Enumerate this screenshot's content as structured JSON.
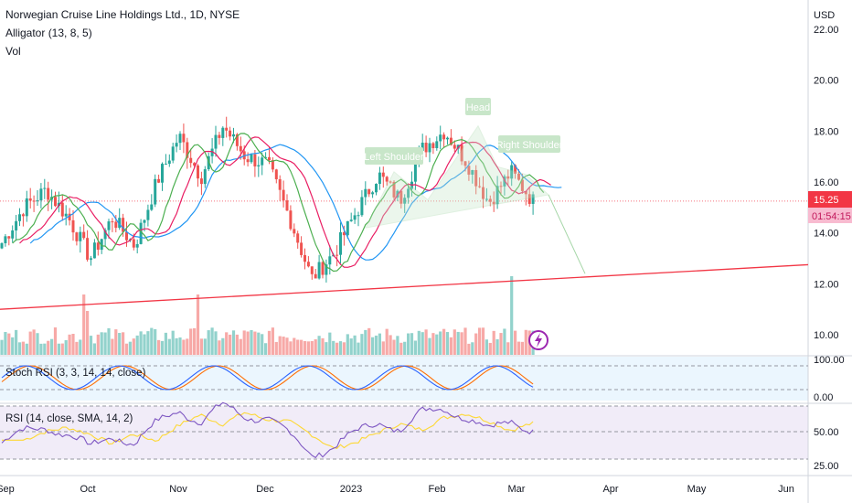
{
  "header": {
    "symbol_title": "Norwegian Cruise Line Holdings Ltd., 1D, NYSE",
    "indicator_alligator": "Alligator (13, 8, 5)",
    "indicator_vol": "Vol"
  },
  "price_axis": {
    "currency": "USD",
    "ticks": [
      "22.00",
      "20.00",
      "18.00",
      "16.00",
      "14.00",
      "12.00",
      "10.00"
    ],
    "current_price": "15.25",
    "countdown": "01:54:15"
  },
  "stoch_pane": {
    "label": "Stoch RSI (3, 3, 14, 14, close)",
    "ticks": [
      "100.00",
      "0.00"
    ]
  },
  "rsi_pane": {
    "label": "RSI (14, close, SMA, 14, 2)",
    "ticks": [
      "50.00",
      "25.00"
    ]
  },
  "time_axis": {
    "ticks": [
      "Sep",
      "Oct",
      "Nov",
      "Dec",
      "2023",
      "Feb",
      "Mar",
      "Apr",
      "May",
      "Jun"
    ]
  },
  "annotations": {
    "left_shoulder": "Left Shoulder",
    "head": "Head",
    "right_shoulder": "Right Shoulder"
  },
  "colors": {
    "up": "#26a69a",
    "down": "#ef5350",
    "jaw": "#2196f3",
    "teeth": "#e91e63",
    "lips": "#4caf50",
    "stoch_k": "#2962ff",
    "stoch_d": "#ff6d00",
    "rsi": "#7e57c2",
    "rsi_ma": "#fdd835",
    "trendline": "#f23645",
    "pattern": "#a5d6a7"
  },
  "chart_data": {
    "type": "candlestick",
    "anchors": [
      {
        "date": "Sep",
        "price": 13.6
      },
      {
        "date": "Sep",
        "price": 15.0
      },
      {
        "date": "Sep",
        "price": 15.7
      },
      {
        "date": "Sep",
        "price": 14.6
      },
      {
        "date": "Oct",
        "price": 13.0
      },
      {
        "date": "Oct",
        "price": 14.6
      },
      {
        "date": "Oct",
        "price": 13.5
      },
      {
        "date": "Oct",
        "price": 16.0
      },
      {
        "date": "Nov",
        "price": 17.8
      },
      {
        "date": "Nov",
        "price": 16.2
      },
      {
        "date": "Nov",
        "price": 18.2
      },
      {
        "date": "Nov",
        "price": 17.0
      },
      {
        "date": "Dec",
        "price": 16.7
      },
      {
        "date": "Dec",
        "price": 14.6
      },
      {
        "date": "Dec",
        "price": 12.2
      },
      {
        "date": "Dec",
        "price": 13.2
      },
      {
        "date": "2023",
        "price": 14.8
      },
      {
        "date": "2023",
        "price": 16.3
      },
      {
        "date": "2023",
        "price": 15.3
      },
      {
        "date": "Feb",
        "price": 17.3
      },
      {
        "date": "Feb",
        "price": 18.0
      },
      {
        "date": "Feb",
        "price": 16.8
      },
      {
        "date": "Mar",
        "price": 15.2
      },
      {
        "date": "Mar",
        "price": 16.4
      },
      {
        "date": "Mar",
        "price": 15.25
      }
    ],
    "trendline": {
      "start_price": 11.0,
      "end_price": 12.75
    },
    "projection_target": 12.4,
    "xlabel": "",
    "ylabel": "USD",
    "ylim": [
      9.2,
      22.6
    ],
    "grid": false
  }
}
